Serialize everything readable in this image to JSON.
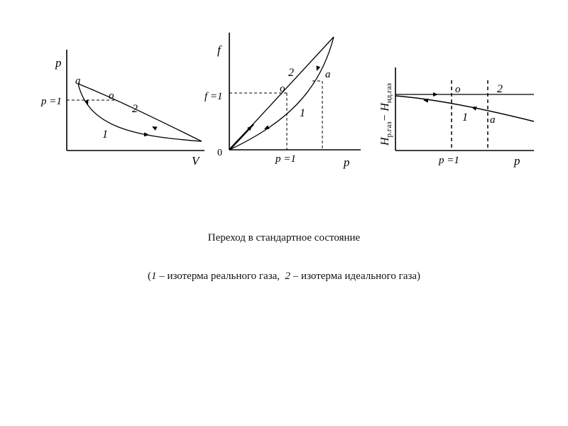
{
  "panel1": {
    "y_axis": "p",
    "x_axis": "V",
    "p_level": "p =1",
    "point_a": "a",
    "point_o": "o",
    "curve_real": "1",
    "curve_ideal": "2"
  },
  "panel2": {
    "y_axis": "f",
    "x_axis": "p",
    "origin": "0",
    "f_level": "f =1",
    "p_level": "p =1",
    "point_a": "a",
    "point_o": "o",
    "curve_real": "1",
    "curve_ideal": "2"
  },
  "panel3": {
    "y_axis_main": "H",
    "y_axis_sub1": "р.газ",
    "y_axis_minus": "− H",
    "y_axis_sub2": "ид.газ",
    "x_axis": "p",
    "p_level": "p =1",
    "point_a": "a",
    "point_o": "o",
    "curve_real": "1",
    "curve_ideal": "2"
  },
  "caption": {
    "title": "Переход в стандартное состояние",
    "open": "(",
    "n1": "1",
    "t1": " – изотерма реального газа,  ",
    "n2": "2",
    "t2": " – изотерма идеального газа)"
  }
}
